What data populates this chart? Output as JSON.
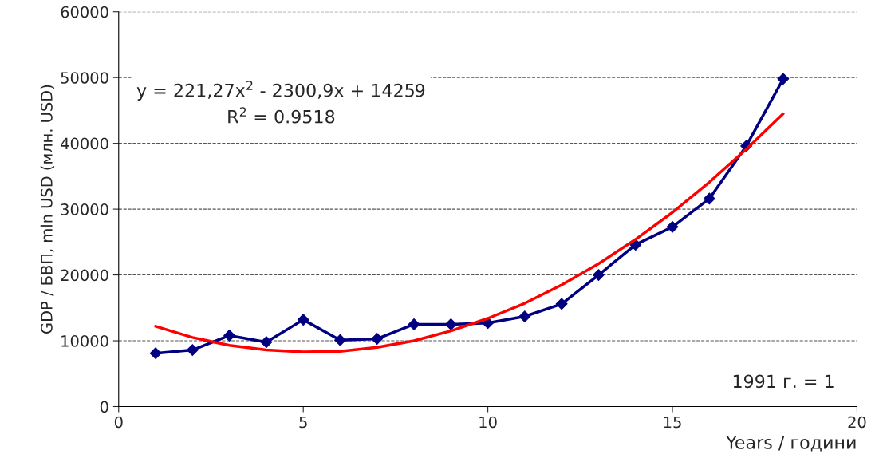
{
  "chart_data": {
    "type": "line",
    "xlabel": "Years / години",
    "ylabel": "GDP / БВП, mln USD (млн. USD)",
    "x": [
      1,
      2,
      3,
      4,
      5,
      6,
      7,
      8,
      9,
      10,
      11,
      12,
      13,
      14,
      15,
      16,
      17,
      18
    ],
    "series": [
      {
        "color": "#000080",
        "marker": "diamond",
        "values": [
          8100,
          8600,
          10800,
          9800,
          13200,
          10100,
          10300,
          12500,
          12500,
          12700,
          13700,
          15600,
          20000,
          24600,
          27300,
          31600,
          39600,
          49800
        ]
      },
      {
        "color": "#ff0000",
        "marker": "none",
        "values": [
          12200,
          10500,
          9300,
          8600,
          8300,
          8400,
          9000,
          10000,
          11500,
          13400,
          15700,
          18500,
          21700,
          25400,
          29500,
          34100,
          39100,
          44500
        ]
      }
    ],
    "xlim": [
      0,
      20
    ],
    "xticks": [
      0,
      5,
      10,
      15,
      20
    ],
    "ylim": [
      0,
      60000
    ],
    "yticks": [
      0,
      10000,
      20000,
      30000,
      40000,
      50000,
      60000
    ],
    "grid": "y",
    "line_style": "solid",
    "annotations": [
      "y = 221,27x$^{2}$ - 2300,9x + 14259",
      "R$^{2}$ = 0.9518",
      "1991 г. = 1"
    ]
  }
}
